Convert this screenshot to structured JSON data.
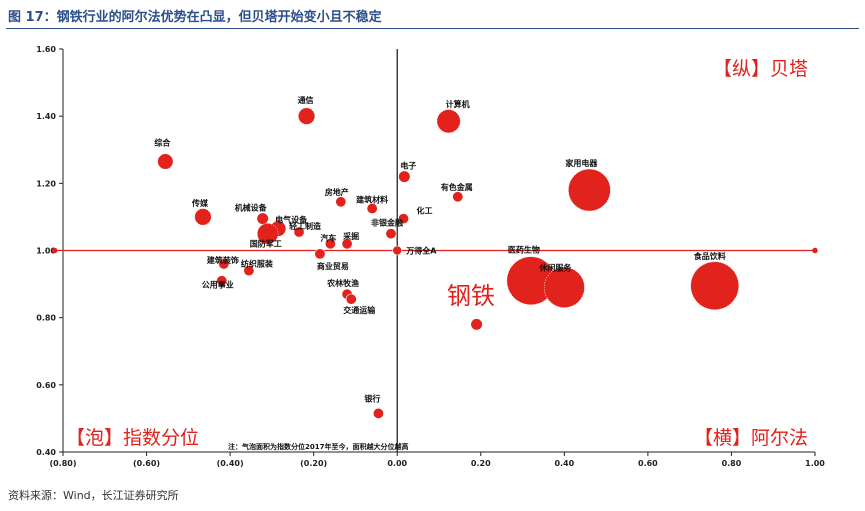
{
  "title": "图 17：钢铁行业的阿尔法优势在凸显，但贝塔开始变小且不稳定",
  "source": "资料来源：Wind，长江证券研究所",
  "colors": {
    "accent": "#e2221c",
    "title_blue": "#2c4f8a"
  },
  "chart_data": {
    "type": "scatter",
    "title": "",
    "xlabel": "",
    "ylabel": "",
    "xlim": [
      -0.8,
      1.0
    ],
    "ylim": [
      0.4,
      1.6
    ],
    "x_ticks": [
      -0.8,
      -0.6,
      -0.4,
      -0.2,
      0.0,
      0.2,
      0.4,
      0.6,
      0.8,
      1.0
    ],
    "x_tick_labels": [
      "(0.80)",
      "(0.60)",
      "(0.40)",
      "(0.20)",
      "0.00",
      "0.20",
      "0.40",
      "0.60",
      "0.80",
      "1.00"
    ],
    "y_ticks": [
      0.4,
      0.6,
      0.8,
      1.0,
      1.2,
      1.4,
      1.6
    ],
    "y_tick_labels": [
      "0.40",
      "0.60",
      "0.80",
      "1.00",
      "1.20",
      "1.40",
      "1.60"
    ],
    "reference_line": {
      "y": 1.0,
      "x_from": -0.82,
      "x_to": 1.0
    },
    "vertical_line_x": 0.0,
    "grid": false,
    "legend": "none",
    "corner_labels": {
      "top_right": "【纵】贝塔",
      "bottom_left": "【泡】指数分位",
      "bottom_right": "【横】阿尔法"
    },
    "highlight": {
      "label": "钢铁"
    },
    "note": "注：气泡面积为指数分位2017年至今，面积越大分位越高",
    "points": [
      {
        "label": "通信",
        "x": -0.217,
        "y": 1.4,
        "size": 0.2
      },
      {
        "label": "综合",
        "x": -0.555,
        "y": 1.265,
        "size": 0.18
      },
      {
        "label": "计算机",
        "x": 0.123,
        "y": 1.385,
        "size": 0.4
      },
      {
        "label": "电子",
        "x": 0.017,
        "y": 1.22,
        "size": 0.1
      },
      {
        "label": "家用电器",
        "x": 0.46,
        "y": 1.18,
        "size": 1.3
      },
      {
        "label": "有色金属",
        "x": 0.145,
        "y": 1.16,
        "size": 0.08
      },
      {
        "label": "传媒",
        "x": -0.465,
        "y": 1.1,
        "size": 0.2
      },
      {
        "label": "房地产",
        "x": -0.135,
        "y": 1.145,
        "size": 0.08
      },
      {
        "label": "建筑材料",
        "x": -0.06,
        "y": 1.125,
        "size": 0.08
      },
      {
        "label": "化工",
        "x": 0.015,
        "y": 1.095,
        "size": 0.08
      },
      {
        "label": "机械设备",
        "x": -0.322,
        "y": 1.095,
        "size": 0.1
      },
      {
        "label": "电气设备",
        "x": -0.285,
        "y": 1.065,
        "size": 0.18
      },
      {
        "label": "轻工制造",
        "x": -0.235,
        "y": 1.055,
        "size": 0.08
      },
      {
        "label": "非银金融",
        "x": -0.015,
        "y": 1.05,
        "size": 0.08
      },
      {
        "label": "汽车",
        "x": -0.16,
        "y": 1.02,
        "size": 0.08
      },
      {
        "label": "采掘",
        "x": -0.12,
        "y": 1.02,
        "size": 0.08
      },
      {
        "label": "国防军工",
        "x": -0.31,
        "y": 1.05,
        "size": 0.32
      },
      {
        "label": "万得全A",
        "x": 0.0,
        "y": 1.0,
        "size": 0.06
      },
      {
        "label": "建筑装饰",
        "x": -0.415,
        "y": 0.96,
        "size": 0.08
      },
      {
        "label": "商业贸易",
        "x": -0.185,
        "y": 0.99,
        "size": 0.08
      },
      {
        "label": "纺织服装",
        "x": -0.355,
        "y": 0.94,
        "size": 0.08
      },
      {
        "label": "公用事业",
        "x": -0.42,
        "y": 0.91,
        "size": 0.08
      },
      {
        "label": "农林牧渔",
        "x": -0.12,
        "y": 0.87,
        "size": 0.08
      },
      {
        "label": "交通运输",
        "x": -0.11,
        "y": 0.855,
        "size": 0.08
      },
      {
        "label": "医药生物",
        "x": 0.32,
        "y": 0.91,
        "size": 1.7
      },
      {
        "label": "休闲服务",
        "x": 0.4,
        "y": 0.89,
        "size": 1.2
      },
      {
        "label": "食品饮料",
        "x": 0.76,
        "y": 0.895,
        "size": 1.7
      },
      {
        "label": "钢铁",
        "x": 0.19,
        "y": 0.78,
        "size": 0.1
      },
      {
        "label": "银行",
        "x": -0.045,
        "y": 0.515,
        "size": 0.08
      }
    ]
  }
}
